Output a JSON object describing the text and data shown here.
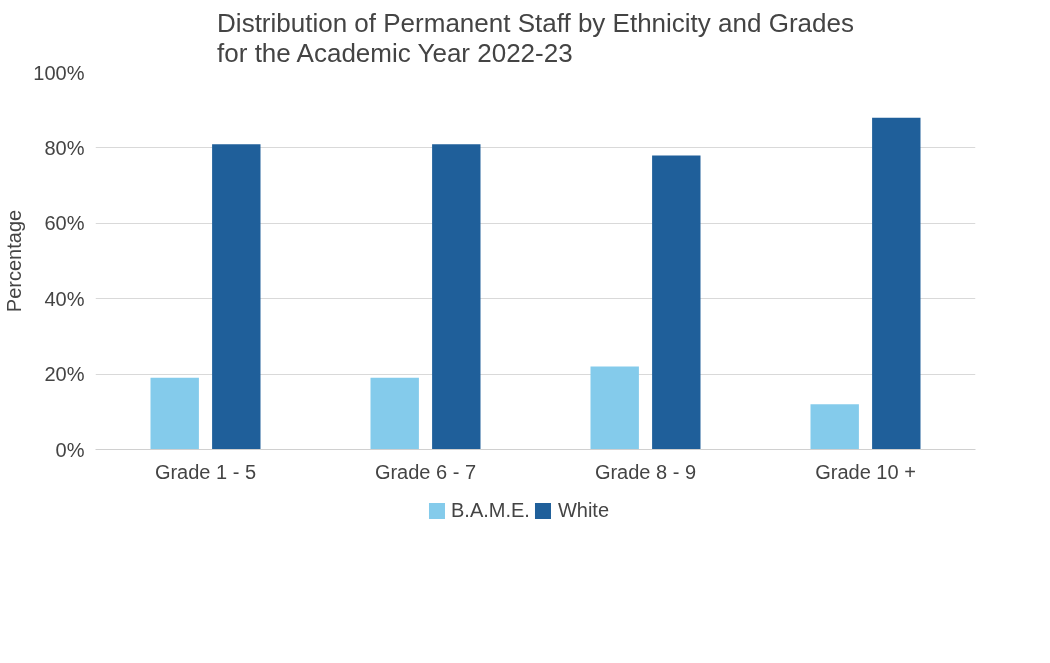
{
  "chart_data": {
    "type": "bar",
    "title": "Distribution of Permanent Staff by Ethnicity and Grades for the Academic Year 2022-23",
    "ylabel": "Percentage",
    "categories": [
      "Grade 1 - 5",
      "Grade 6 - 7",
      "Grade 8 - 9",
      "Grade 10 +"
    ],
    "series": [
      {
        "name": "B.A.M.E.",
        "color": "#84cbeb",
        "values": [
          19,
          19,
          22,
          12
        ]
      },
      {
        "name": "White",
        "color": "#1f5f9a",
        "values": [
          81,
          81,
          78,
          88
        ]
      }
    ],
    "ylim": [
      0,
      100
    ],
    "yticks": [
      {
        "value": 0,
        "label": "0%"
      },
      {
        "value": 20,
        "label": "20%"
      },
      {
        "value": 40,
        "label": "40%"
      },
      {
        "value": 60,
        "label": "60%"
      },
      {
        "value": 80,
        "label": "80%"
      },
      {
        "value": 100,
        "label": "100%"
      }
    ],
    "grid": "y",
    "legend": "bottom"
  }
}
